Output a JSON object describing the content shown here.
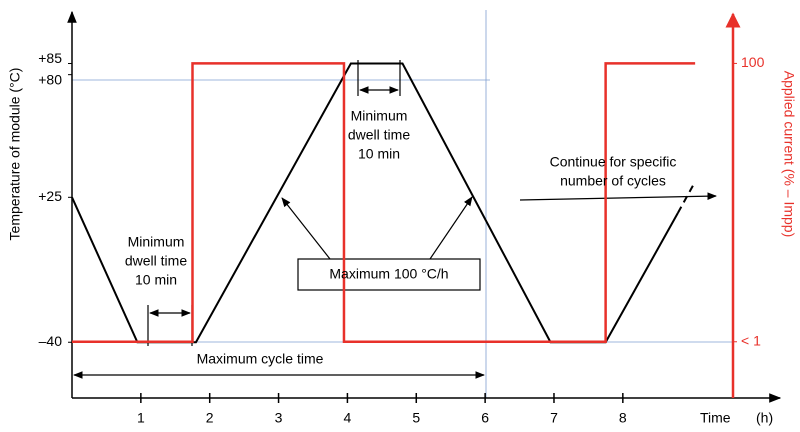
{
  "chart_data": {
    "type": "line",
    "ylabel": "Temperature of module  (°C)",
    "y2label": "Applied current  (% – Impp)",
    "xlabel": "Time",
    "xunit": "(h)",
    "xlim": [
      0,
      9.6
    ],
    "ylim": [
      -65,
      109
    ],
    "y2lim": [
      -19,
      119
    ],
    "xticks": [
      1,
      2,
      3,
      4,
      5,
      6,
      7,
      8
    ],
    "yticks": [
      {
        "value": 85,
        "label": "+85"
      },
      {
        "value": 80,
        "label": "+80"
      },
      {
        "value": 25,
        "label": "+25"
      },
      {
        "value": -40,
        "label": "–40"
      }
    ],
    "y2ticks": [
      100,
      {
        "value": 1,
        "label": "< 1"
      }
    ],
    "series": [
      {
        "color": "#000000",
        "x": [
          0,
          0.95,
          1.8,
          4.05,
          4.8,
          6.95,
          7.75,
          8.8
        ],
        "values": [
          25,
          -40,
          -40,
          85,
          85,
          -40,
          -40,
          18
        ]
      },
      {
        "color": "#000000",
        "dashed": true,
        "x": [
          8.8,
          9.05
        ],
        "values": [
          18,
          32
        ]
      },
      {
        "color": "#e8312a",
        "axis": "y2",
        "x": [
          0,
          1.75,
          1.75,
          3.95,
          3.95,
          7.75,
          7.75,
          9.05
        ],
        "values": [
          1,
          1,
          100,
          100,
          1,
          1,
          100,
          100
        ]
      }
    ],
    "annotations": [
      {
        "lines": [
          "Minimum",
          "dwell time",
          "10 min"
        ]
      },
      {
        "lines": [
          "Minimum",
          "dwell time",
          "10 min"
        ]
      },
      {
        "lines": [
          "Maximum 100 °C/h"
        ]
      },
      {
        "lines": [
          "Continue for specific",
          "number of cycles"
        ]
      },
      {
        "lines": [
          "Maximum cycle time"
        ]
      }
    ]
  }
}
